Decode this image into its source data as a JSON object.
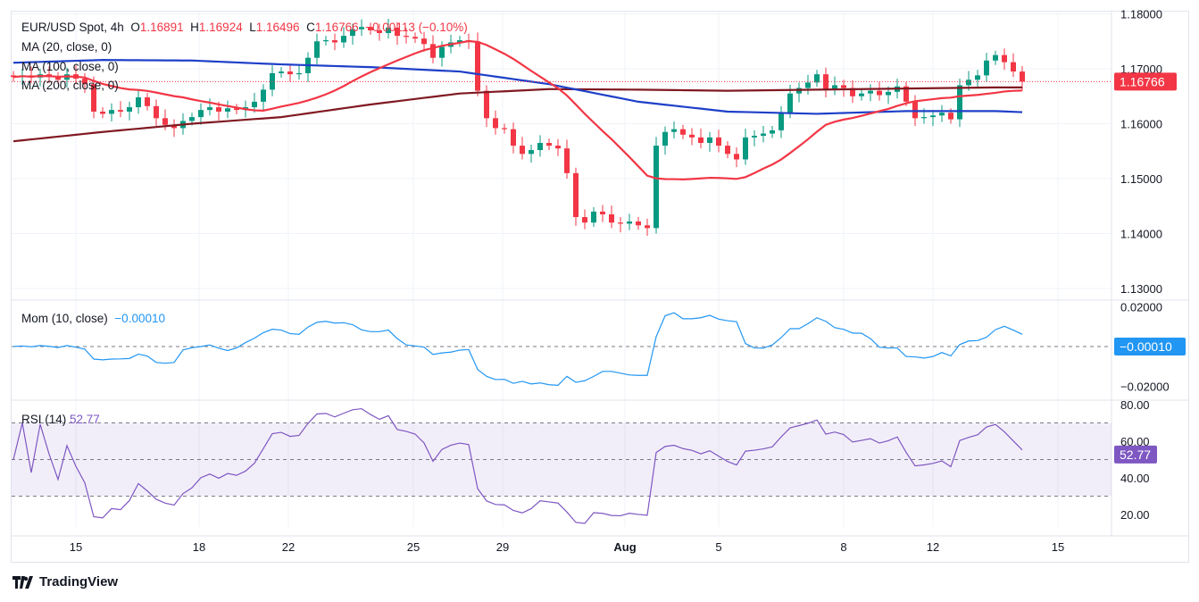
{
  "header": {
    "symbol": "EUR/USD Spot, 4h",
    "open_label": "O",
    "open": "1.16891",
    "high_label": "H",
    "high": "1.16924",
    "low_label": "L",
    "low": "1.16496",
    "close_label": "C",
    "close": "1.16766",
    "change": "−0.00113 (−0.10%)"
  },
  "indicators": {
    "ma20": "MA (20, close, 0)",
    "ma100": "MA (100, close, 0)",
    "ma200": "MA (200, close, 0)",
    "mom_label": "Mom (10, close)",
    "mom_value": "−0.00010",
    "rsi_label": "RSI (14)",
    "rsi_value": "52.77"
  },
  "colors": {
    "up": "#089981",
    "down": "#f23645",
    "ma20": "#f23645",
    "ma100": "#1e40c8",
    "ma200": "#801922",
    "mom": "#2196f3",
    "rsi": "#7e57c2"
  },
  "brand": {
    "name": "TradingView",
    "icon": "tradingview-logo-icon"
  },
  "chart_data": [
    {
      "type": "candlestick",
      "title": "EUR/USD Spot, 4h",
      "ylim": [
        1.13,
        1.18
      ],
      "yticks": [
        "1.18000",
        "1.17000",
        "1.16000",
        "1.15000",
        "1.14000",
        "1.13000"
      ],
      "xticks": [
        "15",
        "18",
        "22",
        "25",
        "29",
        "Aug",
        "5",
        "8",
        "12",
        "15"
      ],
      "last_price": "1.16766",
      "closes": [
        1.1685,
        1.1688,
        1.1684,
        1.169,
        1.1686,
        1.168,
        1.169,
        1.1682,
        1.1672,
        1.1622,
        1.1618,
        1.1625,
        1.1622,
        1.163,
        1.1648,
        1.1632,
        1.161,
        1.1598,
        1.1592,
        1.1605,
        1.1612,
        1.1625,
        1.163,
        1.1622,
        1.1628,
        1.1625,
        1.163,
        1.164,
        1.1662,
        1.1692,
        1.1695,
        1.169,
        1.1692,
        1.172,
        1.175,
        1.1752,
        1.1748,
        1.176,
        1.1772,
        1.1776,
        1.177,
        1.1765,
        1.1775,
        1.176,
        1.1758,
        1.1755,
        1.1745,
        1.172,
        1.174,
        1.1748,
        1.1752,
        1.175,
        1.166,
        1.161,
        1.1592,
        1.159,
        1.156,
        1.1545,
        1.1552,
        1.1565,
        1.156,
        1.1555,
        1.151,
        1.143,
        1.142,
        1.144,
        1.1435,
        1.142,
        1.1418,
        1.1422,
        1.1415,
        1.141,
        1.156,
        1.1585,
        1.159,
        1.158,
        1.1575,
        1.1565,
        1.1575,
        1.156,
        1.1545,
        1.1535,
        1.1575,
        1.1578,
        1.1582,
        1.1588,
        1.162,
        1.1655,
        1.1665,
        1.1675,
        1.169,
        1.1662,
        1.167,
        1.1665,
        1.165,
        1.1655,
        1.166,
        1.1652,
        1.1658,
        1.1668,
        1.164,
        1.161,
        1.1612,
        1.1615,
        1.162,
        1.1608,
        1.167,
        1.168,
        1.1688,
        1.1715,
        1.1725,
        1.1712,
        1.1695,
        1.16766
      ],
      "ma100_samples": [
        1.1711,
        1.1716,
        1.1715,
        1.1708,
        1.1703,
        1.1695,
        1.1672,
        1.164,
        1.1622,
        1.1618,
        1.1623,
        1.1623,
        1.1621
      ],
      "ma200_samples": [
        1.1568,
        1.1585,
        1.16,
        1.1612,
        1.1635,
        1.1655,
        1.1663,
        1.1662,
        1.166,
        1.1662,
        1.1664,
        1.1666,
        1.1666
      ]
    },
    {
      "type": "line",
      "title": "Mom (10, close)",
      "ylim": [
        -0.03,
        0.025
      ],
      "yticks": [
        "0.02000",
        "−0.02000"
      ],
      "last_value": "−0.00010"
    },
    {
      "type": "line",
      "title": "RSI (14)",
      "ylim": [
        10,
        85
      ],
      "yticks": [
        "80.00",
        "60.00",
        "40.00",
        "20.00"
      ],
      "bands": [
        30,
        50,
        70
      ],
      "last_value": "52.77"
    }
  ]
}
